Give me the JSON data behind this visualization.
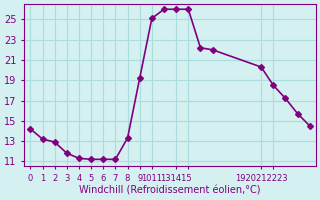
{
  "x": [
    0,
    1,
    2,
    3,
    4,
    5,
    6,
    7,
    8,
    9,
    10,
    11,
    12,
    13,
    14,
    15,
    19,
    20,
    21,
    22,
    23
  ],
  "y": [
    14.2,
    13.2,
    12.9,
    11.8,
    11.3,
    11.2,
    11.2,
    11.2,
    13.3,
    19.2,
    25.1,
    26.0,
    26.0,
    26.0,
    22.2,
    22.0,
    20.3,
    18.5,
    17.2,
    15.7,
    14.5
  ],
  "line_color": "#800080",
  "marker": "D",
  "marker_size": 3,
  "bg_color": "#d4f0f0",
  "grid_color": "#aadddd",
  "xlabel": "Windchill (Refroidissement éolien,°C)",
  "xlabel_color": "#800080",
  "tick_color": "#800080",
  "yticks": [
    11,
    13,
    15,
    17,
    19,
    21,
    23,
    25
  ],
  "xtick_positions": [
    0,
    1,
    2,
    3,
    4,
    5,
    6,
    7,
    8,
    9,
    10,
    12,
    13,
    19,
    20
  ],
  "xtick_labels": [
    "0",
    "1",
    "2",
    "3",
    "4",
    "5",
    "6",
    "7",
    "8",
    "9",
    "1011",
    "131415",
    "",
    "1920212223",
    ""
  ],
  "xlim": [
    -0.5,
    23.5
  ],
  "ylim": [
    10.5,
    26.5
  ]
}
